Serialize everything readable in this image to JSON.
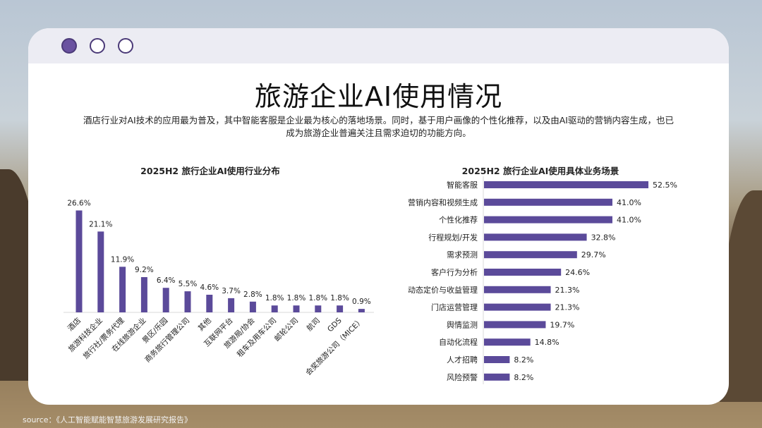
{
  "title": "旅游企业AI使用情况",
  "subtitle": [
    "酒店行业对AI技术的应用最为普及，其中智能客服是企业最为核心的落地场景。同时，基于用户画像的个性化推荐，以及由AI驱动的营销内容生成，也已",
    "成为旅游企业普遍关注且需求迫切的功能方向。"
  ],
  "source": "source：《人工智能赋能智慧旅游发展研究报告》",
  "window_dots": [
    "filled",
    "empty",
    "empty"
  ],
  "colors": {
    "bar": "#5b4a9a",
    "window_dot": "#6a52a0"
  },
  "chart_data": [
    {
      "type": "bar",
      "title": "2025H2 旅行企业AI使用行业分布",
      "categories": [
        "酒店",
        "旅游科技企业",
        "旅行社/票务代理",
        "在线旅游企业",
        "景区/乐园",
        "商务旅行管理公司",
        "其他",
        "互联网平台",
        "旅游局/协会",
        "租车及用车公司",
        "邮轮公司",
        "航司",
        "GDS",
        "会奖旅游公司（MICE）"
      ],
      "values": [
        26.6,
        21.1,
        11.9,
        9.2,
        6.4,
        5.5,
        4.6,
        3.7,
        2.8,
        1.8,
        1.8,
        1.8,
        1.8,
        0.9
      ],
      "labels": [
        "26.6%",
        "21.1%",
        "11.9%",
        "9.2%",
        "6.4%",
        "5.5%",
        "4.6%",
        "3.7%",
        "2.8%",
        "1.8%",
        "1.8%",
        "1.8%",
        "1.8%",
        "0.9%"
      ],
      "unit": "%",
      "ylim": [
        0,
        30
      ],
      "grid": false,
      "legend": "none"
    },
    {
      "type": "bar",
      "orientation": "horizontal",
      "title": "2025H2 旅行企业AI使用具体业务场景",
      "categories": [
        "智能客服",
        "营销内容和视频生成",
        "个性化推荐",
        "行程规划/开发",
        "需求预测",
        "客户行为分析",
        "动态定价与收益管理",
        "门店运营管理",
        "舆情监测",
        "自动化流程",
        "人才招聘",
        "风险预警"
      ],
      "values": [
        52.5,
        41.0,
        41.0,
        32.8,
        29.7,
        24.6,
        21.3,
        21.3,
        19.7,
        14.8,
        8.2,
        8.2
      ],
      "labels": [
        "52.5%",
        "41.0%",
        "41.0%",
        "32.8%",
        "29.7%",
        "24.6%",
        "21.3%",
        "21.3%",
        "19.7%",
        "14.8%",
        "8.2%",
        "8.2%"
      ],
      "unit": "%",
      "xlim": [
        0,
        60
      ],
      "grid": false,
      "legend": "none"
    }
  ]
}
